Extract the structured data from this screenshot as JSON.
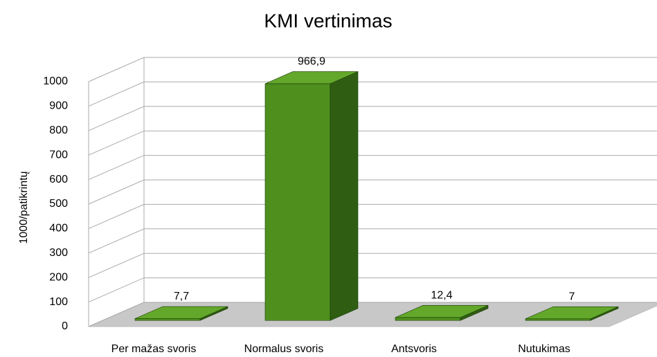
{
  "chart_data": {
    "type": "bar3d",
    "title": "KMI vertinimas",
    "y_label": "1000/patikrintų",
    "categories": [
      "Per mažas svoris",
      "Normalus svoris",
      "Antsvoris",
      "Nutukimas"
    ],
    "values": [
      7.7,
      966.9,
      12.4,
      7
    ],
    "value_labels": [
      "7,7",
      "966,9",
      "12,4",
      "7"
    ],
    "color": "#4e8f1e",
    "ylim": [
      0,
      1000
    ],
    "yticks": [
      0,
      100,
      200,
      300,
      400,
      500,
      600,
      700,
      800,
      900,
      1000
    ],
    "grid": true
  }
}
